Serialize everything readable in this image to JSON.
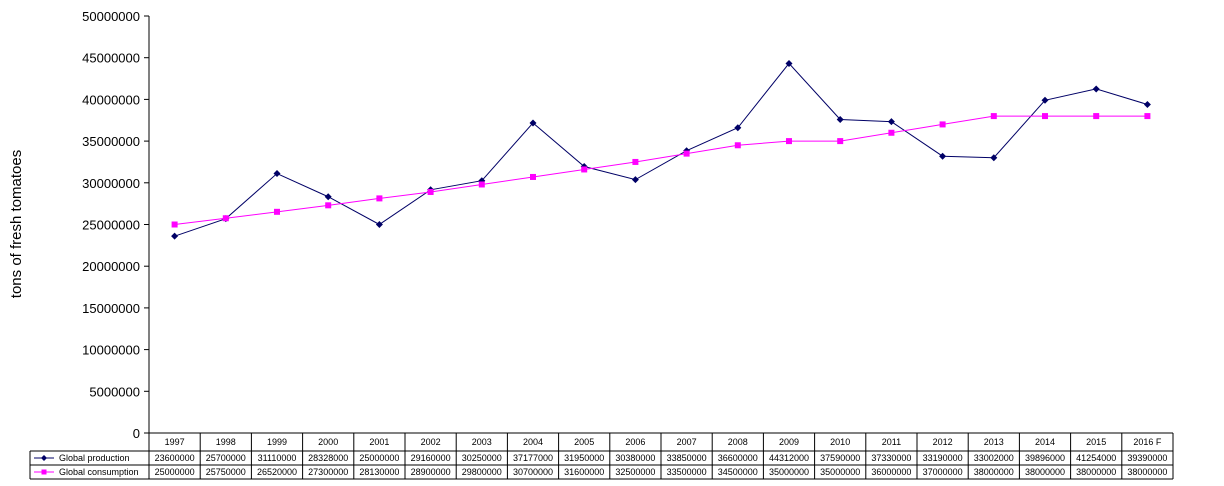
{
  "chart_data": {
    "type": "line",
    "title": "",
    "xlabel": "",
    "ylabel": "tons of fresh tomatoes",
    "ylim": [
      0,
      50000000
    ],
    "yticks": [
      0,
      5000000,
      10000000,
      15000000,
      20000000,
      25000000,
      30000000,
      35000000,
      40000000,
      45000000,
      50000000
    ],
    "grid": false,
    "legend": "bottom data table",
    "categories": [
      "1997",
      "1998",
      "1999",
      "2000",
      "2001",
      "2002",
      "2003",
      "2004",
      "2005",
      "2006",
      "2007",
      "2008",
      "2009",
      "2010",
      "2011",
      "2012",
      "2013",
      "2014",
      "2015",
      "2016 F"
    ],
    "series": [
      {
        "name": "Global production",
        "color": "#000066",
        "marker": "diamond",
        "values": [
          23600000,
          25700000,
          31110000,
          28328000,
          25000000,
          29160000,
          30250000,
          37177000,
          31950000,
          30380000,
          33850000,
          36600000,
          44312000,
          37590000,
          37330000,
          33190000,
          33002000,
          39896000,
          41254000,
          39390000
        ]
      },
      {
        "name": "Global consumption",
        "color": "#ff00ff",
        "marker": "square",
        "values": [
          25000000,
          25750000,
          26520000,
          27300000,
          28130000,
          28900000,
          29800000,
          30700000,
          31600000,
          32500000,
          33500000,
          34500000,
          35000000,
          35000000,
          36000000,
          37000000,
          38000000,
          38000000,
          38000000,
          38000000
        ]
      }
    ]
  }
}
